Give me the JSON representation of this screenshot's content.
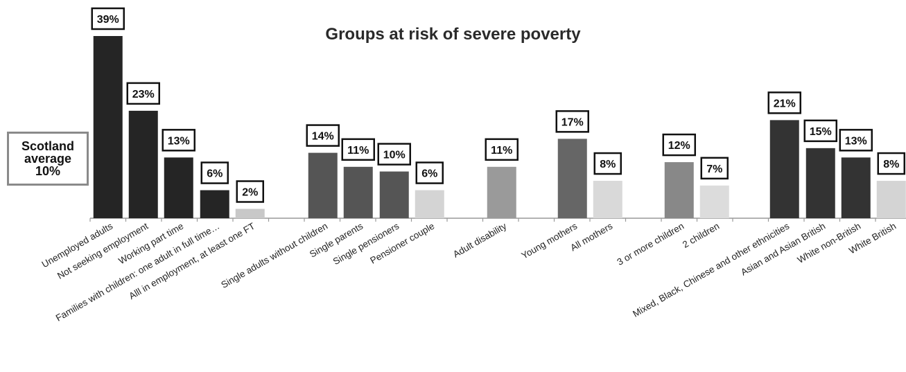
{
  "chart_data": {
    "type": "bar",
    "title": "Groups at risk of severe poverty",
    "xlabel": "",
    "ylabel": "",
    "ylim": [
      0,
      40
    ],
    "grid": false,
    "legend": "none",
    "annotation": {
      "line1": "Scotland",
      "line2": "average",
      "line3": "10%"
    },
    "categories": [
      "Unemployed adults",
      "Not seeking employment",
      "Working part time",
      "Families with children: one adult in full time…",
      "Alll in employment, at least one FT",
      "Single adults without children",
      "Single parents",
      "Single pensioners",
      "Pensioner couple",
      "Adult disability",
      "Young mothers",
      "All mothers",
      "3 or more children",
      "2 children",
      "Mixed, Black, Chinese and other ethnicities",
      "Asian and Asian British",
      "White non-British",
      "White British"
    ],
    "values": [
      39,
      23,
      13,
      6,
      2,
      14,
      11,
      10,
      6,
      11,
      17,
      8,
      12,
      7,
      21,
      15,
      13,
      8
    ],
    "value_labels": [
      "39%",
      "23%",
      "13%",
      "6%",
      "2%",
      "14%",
      "11%",
      "10%",
      "6%",
      "11%",
      "17%",
      "8%",
      "12%",
      "7%",
      "21%",
      "15%",
      "13%",
      "8%"
    ],
    "bar_colors": [
      "#252525",
      "#252525",
      "#252525",
      "#252525",
      "#c8c8c8",
      "#555555",
      "#555555",
      "#555555",
      "#d4d4d4",
      "#9a9a9a",
      "#666666",
      "#d9d9d9",
      "#888888",
      "#dcdcdc",
      "#333333",
      "#333333",
      "#333333",
      "#d4d4d4"
    ]
  }
}
